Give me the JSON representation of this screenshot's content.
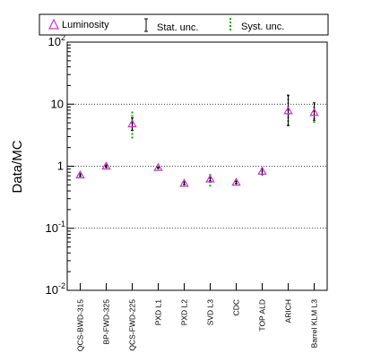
{
  "chart_data": {
    "type": "scatter",
    "title": "",
    "xlabel": "",
    "ylabel": "Data/MC",
    "yscale": "log",
    "ylim": [
      0.01,
      100
    ],
    "y_ticks": [
      {
        "value": 0.01,
        "base": "10",
        "exp": "-2"
      },
      {
        "value": 0.1,
        "base": "10",
        "exp": "-1"
      },
      {
        "value": 1,
        "base": "1",
        "exp": ""
      },
      {
        "value": 10,
        "base": "10",
        "exp": ""
      },
      {
        "value": 100,
        "base": "10",
        "exp": "2"
      }
    ],
    "grid_y": [
      0.1,
      1,
      10
    ],
    "categories": [
      "QCS-BWD-315",
      "BP-FWD-325",
      "QCS-FWD-225",
      "PXD L1",
      "PXD L2",
      "SVD L3",
      "CDC",
      "TOP ALD",
      "ARICH",
      "Barrel KLM L3"
    ],
    "legend": {
      "placement": "top",
      "entries": [
        {
          "label": "Luminosity",
          "marker": "triangle",
          "color": "#cc33cc"
        },
        {
          "label": "Stat. unc.",
          "marker": "errorbar",
          "color": "#000000"
        },
        {
          "label": "Syst. unc.",
          "marker": "dashed-errorbar",
          "color": "#00aa00"
        }
      ]
    },
    "series": [
      {
        "name": "Luminosity",
        "color": "#cc33cc",
        "values": [
          0.72,
          1.0,
          4.8,
          0.95,
          0.53,
          0.62,
          0.55,
          0.83,
          7.8,
          7.3
        ],
        "stat_low": [
          0.7,
          0.97,
          3.8,
          0.93,
          0.51,
          0.58,
          0.53,
          0.74,
          4.5,
          5.5
        ],
        "stat_high": [
          0.75,
          1.03,
          6.0,
          0.97,
          0.56,
          0.66,
          0.57,
          0.92,
          14.0,
          10.5
        ],
        "syst_low": [
          0.66,
          0.92,
          2.8,
          0.88,
          0.47,
          0.47,
          0.5,
          0.7,
          4.5,
          5.0
        ],
        "syst_high": [
          0.78,
          1.1,
          8.0,
          1.02,
          0.6,
          0.8,
          0.6,
          0.95,
          14.5,
          9.5
        ]
      }
    ]
  }
}
